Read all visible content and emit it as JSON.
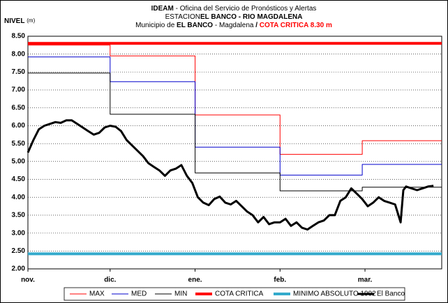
{
  "chart_data": {
    "type": "line",
    "title": {
      "org": "IDEAM",
      "office": " - Oficina del Servicio de Pronósticos y Alertas",
      "station_label": "ESTACION",
      "station": "EL BANCO -  RIO MAGDALENA",
      "municipality_label": "Municipio de ",
      "municipality": "EL BANCO",
      "dept": " - Magdalena  ",
      "sep": "/  ",
      "cota": "COTA CRITICA 8.30 m"
    },
    "ylabel": "NIVEL",
    "yunit": "(m)",
    "xlim": [
      0,
      151
    ],
    "xticks": [
      {
        "value": 0,
        "label": "nov."
      },
      {
        "value": 30,
        "label": "dic."
      },
      {
        "value": 61,
        "label": "ene."
      },
      {
        "value": 92,
        "label": "feb."
      },
      {
        "value": 123,
        "label": "mar."
      }
    ],
    "ylim": [
      2,
      8.5
    ],
    "yticks": [
      {
        "value": 2,
        "label": "2.00"
      },
      {
        "value": 2.5,
        "label": "2.50"
      },
      {
        "value": 3,
        "label": "3.00"
      },
      {
        "value": 3.5,
        "label": "3.50"
      },
      {
        "value": 4,
        "label": "4.00"
      },
      {
        "value": 4.5,
        "label": "4.50"
      },
      {
        "value": 5,
        "label": "5.00"
      },
      {
        "value": 5.5,
        "label": "5.50"
      },
      {
        "value": 6,
        "label": "6.00"
      },
      {
        "value": 6.5,
        "label": "6.50"
      },
      {
        "value": 7,
        "label": "7.00"
      },
      {
        "value": 7.5,
        "label": "7.50"
      },
      {
        "value": 8,
        "label": "8.00"
      },
      {
        "value": 8.5,
        "label": "8.50"
      }
    ],
    "grid": true,
    "legend": "bottom",
    "series": [
      {
        "name": "MAX",
        "color": "#ff0000",
        "width": 1,
        "x": [
          0,
          30,
          30,
          61,
          61,
          92,
          92,
          122,
          122,
          151
        ],
        "values": [
          8.25,
          8.25,
          7.95,
          7.95,
          6.3,
          6.3,
          5.2,
          5.2,
          5.58,
          5.58
        ]
      },
      {
        "name": "MED",
        "color": "#0000cc",
        "width": 1,
        "x": [
          0,
          30,
          30,
          61,
          61,
          92,
          92,
          122,
          122,
          151
        ],
        "values": [
          7.92,
          7.92,
          7.23,
          7.23,
          5.4,
          5.4,
          4.62,
          4.62,
          4.92,
          4.92
        ]
      },
      {
        "name": "MIN",
        "color": "#000000",
        "width": 1,
        "x": [
          0,
          30,
          30,
          61,
          61,
          92,
          92,
          122,
          122,
          151
        ],
        "values": [
          7.47,
          7.47,
          6.32,
          6.32,
          4.68,
          4.68,
          4.18,
          4.18,
          4.28,
          4.28
        ]
      },
      {
        "name": "COTA CRITICA",
        "color": "#ff0000",
        "width": 4,
        "x": [
          0,
          151
        ],
        "values": [
          8.3,
          8.3
        ]
      },
      {
        "name": "MINIMO ABSOLUTO 1992",
        "color": "#33aacc",
        "width": 4,
        "x": [
          0,
          151
        ],
        "values": [
          2.42,
          2.42
        ]
      },
      {
        "name": "El Banco",
        "color": "#000000",
        "width": 3,
        "x": [
          0,
          2,
          4,
          6,
          8,
          10,
          12,
          14,
          16,
          18,
          20,
          22,
          24,
          26,
          28,
          30,
          32,
          34,
          36,
          38,
          40,
          42,
          44,
          46,
          48,
          50,
          52,
          54,
          56,
          58,
          60,
          62,
          64,
          66,
          68,
          70,
          72,
          74,
          76,
          78,
          80,
          82,
          84,
          86,
          88,
          90,
          92,
          94,
          96,
          98,
          100,
          102,
          104,
          106,
          108,
          110,
          112,
          114,
          116,
          118,
          120,
          122,
          124,
          126,
          128,
          130,
          132,
          134,
          136,
          137,
          138,
          140,
          142,
          144,
          146,
          148
        ],
        "values": [
          5.25,
          5.6,
          5.9,
          6.0,
          6.05,
          6.1,
          6.08,
          6.15,
          6.15,
          6.05,
          5.95,
          5.85,
          5.75,
          5.8,
          5.95,
          6.0,
          5.97,
          5.85,
          5.6,
          5.45,
          5.3,
          5.15,
          4.95,
          4.85,
          4.75,
          4.6,
          4.75,
          4.8,
          4.9,
          4.6,
          4.4,
          4.0,
          3.85,
          3.78,
          3.95,
          4.02,
          3.85,
          3.8,
          3.9,
          3.75,
          3.6,
          3.5,
          3.3,
          3.45,
          3.25,
          3.3,
          3.3,
          3.4,
          3.2,
          3.3,
          3.15,
          3.1,
          3.2,
          3.3,
          3.35,
          3.5,
          3.5,
          3.9,
          4.0,
          4.25,
          4.1,
          3.95,
          3.75,
          3.85,
          4.0,
          3.9,
          3.85,
          3.8,
          3.3,
          4.2,
          4.3,
          4.25,
          4.2,
          4.25,
          4.3,
          4.32
        ]
      }
    ]
  }
}
